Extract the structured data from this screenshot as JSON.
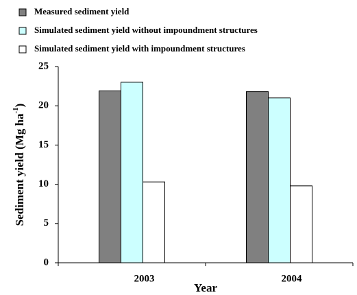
{
  "chart_data": {
    "type": "bar",
    "categories": [
      "2003",
      "2004"
    ],
    "series": [
      {
        "name": "Measured sediment yield",
        "color": "#808080",
        "values": [
          21.9,
          21.8
        ]
      },
      {
        "name": "Simulated sediment yield without impoundment structures",
        "color": "#ccffff",
        "values": [
          23.0,
          21.0
        ]
      },
      {
        "name": "Simulated sediment yield with impoundment structures",
        "color": "#ffffff",
        "values": [
          10.3,
          9.8
        ]
      }
    ],
    "x_label": "Year",
    "y_label": {
      "main": "Sediment yield (Mg ha",
      "sup": "-1",
      "end": ")"
    },
    "ylim": [
      0,
      25
    ],
    "yticks": [
      0,
      5,
      10,
      15,
      20,
      25
    ],
    "grid": false
  }
}
